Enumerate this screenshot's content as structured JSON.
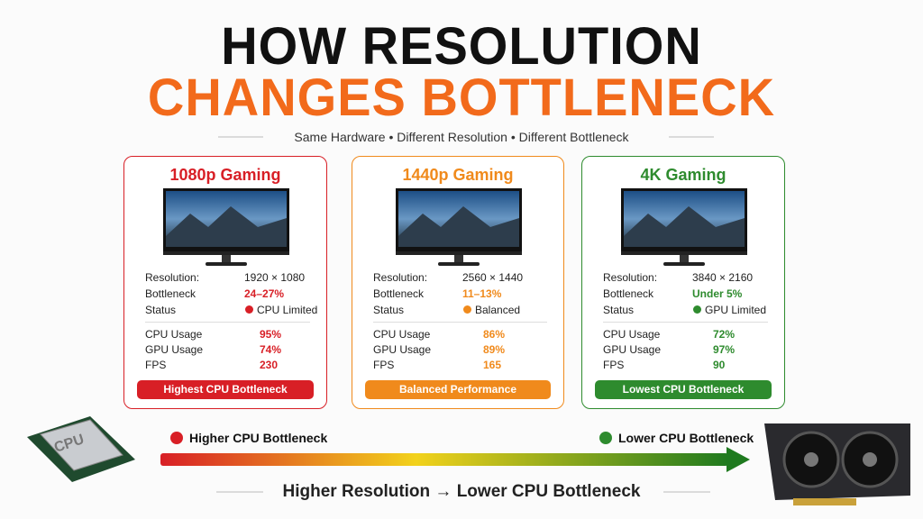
{
  "header": {
    "title_line1": "HOW RESOLUTION",
    "title_line2": "CHANGES BOTTLENECK",
    "subtitle": "Same Hardware • Different Resolution • Different Bottleneck"
  },
  "cards": [
    {
      "title": "1080p Gaming",
      "color": "#d81f26",
      "rows": [
        [
          "Resolution:",
          "1920 × 1080"
        ],
        [
          "Bottleneck",
          "24–27%"
        ],
        [
          "Status",
          "CPU Limited"
        ]
      ],
      "usage": [
        [
          "CPU Usage",
          "95%"
        ],
        [
          "GPU Usage",
          "74%"
        ],
        [
          "FPS",
          "230"
        ]
      ],
      "badge": "Highest CPU Bottleneck"
    },
    {
      "title": "1440p Gaming",
      "color": "#f08a1c",
      "rows": [
        [
          "Resolution:",
          "2560 × 1440"
        ],
        [
          "Bottleneck",
          "11–13%"
        ],
        [
          "Status",
          "Balanced"
        ]
      ],
      "usage": [
        [
          "CPU Usage",
          "86%"
        ],
        [
          "GPU Usage",
          "89%"
        ],
        [
          "FPS",
          "165"
        ]
      ],
      "badge": "Balanced Performance"
    },
    {
      "title": "4K Gaming",
      "color": "#2e8b2e",
      "rows": [
        [
          "Resolution:",
          "3840 × 2160"
        ],
        [
          "Bottleneck",
          "Under 5%"
        ],
        [
          "Status",
          "GPU Limited"
        ]
      ],
      "usage": [
        [
          "CPU Usage",
          "72%"
        ],
        [
          "GPU Usage",
          "97%"
        ],
        [
          "FPS",
          "90"
        ]
      ],
      "badge": "Lowest CPU Bottleneck"
    }
  ],
  "scale": {
    "left_label": "Higher CPU Bottleneck",
    "right_label": "Lower CPU Bottleneck",
    "caption": "Higher Resolution → Lower CPU Bottleneck"
  },
  "cpu_label": "CPU"
}
